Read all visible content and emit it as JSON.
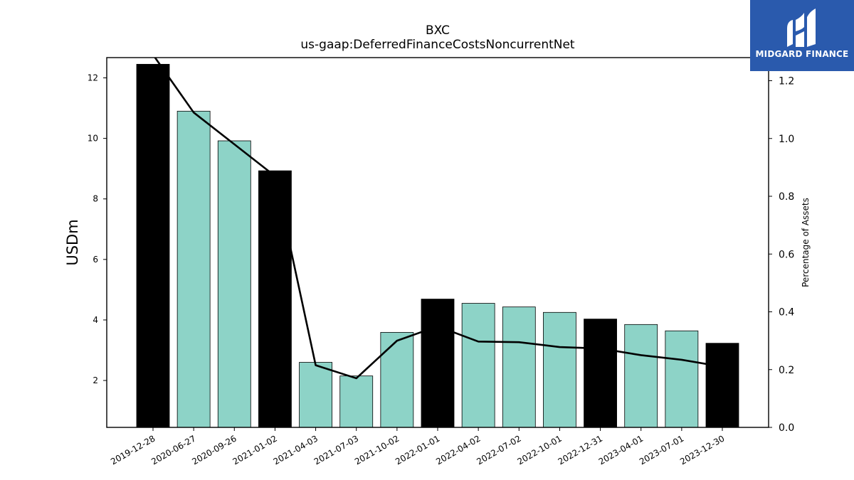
{
  "logo": {
    "text": "MIDGARD FINANCE",
    "background": "#2a5aad",
    "icon": "midgard-logo-icon"
  },
  "chart_data": {
    "type": "bar",
    "title": "BXC",
    "subtitle": "us-gaap:DeferredFinanceCostsNoncurrentNet",
    "ylabel": "USDm",
    "ylabel_right": "Percentage of Assets",
    "categories": [
      "2019-12-28",
      "2020-06-27",
      "2020-09-26",
      "2021-01-02",
      "2021-04-03",
      "2021-07-03",
      "2021-10-02",
      "2022-01-01",
      "2022-04-02",
      "2022-07-02",
      "2022-10-01",
      "2022-12-31",
      "2023-04-01",
      "2023-07-01",
      "2023-12-30"
    ],
    "series": [
      {
        "values": [
          12.45,
          10.9,
          9.92,
          8.93,
          2.6,
          2.15,
          3.59,
          4.69,
          4.55,
          4.43,
          4.25,
          4.03,
          3.85,
          3.64,
          3.23
        ],
        "bar_colors": [
          "#000000",
          "#8dd3c7",
          "#8dd3c7",
          "#000000",
          "#8dd3c7",
          "#8dd3c7",
          "#8dd3c7",
          "#000000",
          "#8dd3c7",
          "#8dd3c7",
          "#8dd3c7",
          "#000000",
          "#8dd3c7",
          "#8dd3c7",
          "#000000"
        ]
      },
      {
        "axis": "right",
        "type": "line",
        "values": [
          1.29,
          1.09,
          0.98,
          0.87,
          0.215,
          0.17,
          0.3,
          0.35,
          0.297,
          0.295,
          0.278,
          0.273,
          0.25,
          0.234,
          0.21
        ],
        "color": "#000000"
      }
    ],
    "ylim": [
      0.45,
      12.67
    ],
    "ylim_right": [
      0.0,
      1.28
    ],
    "yticks": [
      "2",
      "4",
      "6",
      "8",
      "10",
      "12"
    ],
    "yticks_right": [
      "0.0",
      "0.2",
      "0.4",
      "0.6",
      "0.8",
      "1.0",
      "1.2"
    ],
    "grid": false,
    "legend": "none"
  }
}
